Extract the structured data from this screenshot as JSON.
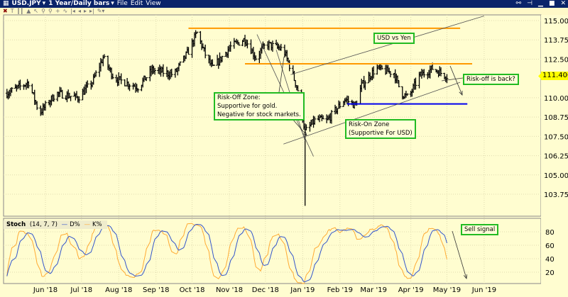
{
  "window": {
    "symbol": "USD.JPY",
    "period": "1 Year/Daily bars",
    "menu": [
      "File",
      "Edit",
      "View"
    ],
    "title_color": "#0a246a"
  },
  "toolbar": {
    "icons": [
      "close-icon",
      "text-icon",
      "bars-icon",
      "area-icon",
      "line-tool-icon",
      "zoom-in-icon",
      "zoom-out-icon",
      "crosshair-icon",
      "indicator-icon",
      "scroll-start-icon",
      "scroll-left-icon",
      "scroll-right-icon",
      "scroll-end-icon",
      "tool-icon"
    ]
  },
  "annotations": {
    "title": "USD vs Yen",
    "risk_off": [
      "Risk-Off Zone:",
      "Supportive for gold.",
      "Negative for stock markets."
    ],
    "risk_on": [
      "Risk-On Zone",
      "(Supportive For USD)"
    ],
    "risk_off_back": "Risk-off is back?",
    "sell_signal": "Sell signal",
    "border_color": "#22bb22"
  },
  "indicator": {
    "name": "Stoch",
    "params": "(14, 7, 7)",
    "d_label": "D%",
    "k_label": "K%",
    "d_color": "#3355cc",
    "k_color": "#ffaa33",
    "y_ticks": [
      "80",
      "60",
      "40",
      "20"
    ]
  },
  "chart_data": {
    "type": "ohlc",
    "last_price": "111.400",
    "y_ticks": [
      "115.000",
      "113.750",
      "112.500",
      "110.000",
      "108.750",
      "107.500",
      "106.250",
      "105.000",
      "103.750"
    ],
    "ylim": [
      102.9,
      115.6
    ],
    "x_ticks": [
      {
        "label": "Jun '18",
        "date": "2018-06-01"
      },
      {
        "label": "Jul '18",
        "date": "2018-07-01"
      },
      {
        "label": "Aug '18",
        "date": "2018-08-01"
      },
      {
        "label": "Sep '18",
        "date": "2018-09-01"
      },
      {
        "label": "Oct '18",
        "date": "2018-10-01"
      },
      {
        "label": "Nov '18",
        "date": "2018-11-01"
      },
      {
        "label": "Dec '18",
        "date": "2018-12-01"
      },
      {
        "label": "Jan '19",
        "date": "2019-01-01"
      },
      {
        "label": "Feb '19",
        "date": "2019-02-01"
      },
      {
        "label": "Mar '19",
        "date": "2019-03-01"
      },
      {
        "label": "Apr '19",
        "date": "2019-04-01"
      },
      {
        "label": "May '19",
        "date": "2019-05-01"
      },
      {
        "label": "Jun '19",
        "date": "2019-06-01"
      }
    ],
    "approx_closes": [
      [
        "2018-04-30",
        110.3
      ],
      [
        "2018-05-18",
        111.0
      ],
      [
        "2018-05-27",
        109.0
      ],
      [
        "2018-06-10",
        110.3
      ],
      [
        "2018-06-28",
        110.0
      ],
      [
        "2018-07-10",
        111.0
      ],
      [
        "2018-07-19",
        112.6
      ],
      [
        "2018-07-28",
        111.3
      ],
      [
        "2018-08-06",
        111.0
      ],
      [
        "2018-08-17",
        110.7
      ],
      [
        "2018-08-29",
        111.8
      ],
      [
        "2018-09-16",
        111.5
      ],
      [
        "2018-09-28",
        113.0
      ],
      [
        "2018-10-05",
        114.2
      ],
      [
        "2018-10-12",
        112.8
      ],
      [
        "2018-10-18",
        111.9
      ],
      [
        "2018-11-02",
        113.3
      ],
      [
        "2018-11-14",
        113.8
      ],
      [
        "2018-11-23",
        112.6
      ],
      [
        "2018-12-02",
        113.5
      ],
      [
        "2018-12-16",
        113.1
      ],
      [
        "2018-12-22",
        111.9
      ],
      [
        "2018-12-28",
        110.5
      ],
      [
        "2019-01-03",
        107.8
      ],
      [
        "2019-01-12",
        108.6
      ],
      [
        "2019-01-21",
        108.5
      ],
      [
        "2019-02-05",
        109.9
      ],
      [
        "2019-02-14",
        109.5
      ],
      [
        "2019-02-19",
        110.8
      ],
      [
        "2019-03-03",
        111.9
      ],
      [
        "2019-03-18",
        111.6
      ],
      [
        "2019-03-24",
        110.3
      ],
      [
        "2019-03-30",
        110.0
      ],
      [
        "2019-04-08",
        111.4
      ],
      [
        "2019-04-19",
        111.9
      ],
      [
        "2019-05-01",
        111.4
      ]
    ],
    "flash_crash": {
      "date": "2019-01-03",
      "low": 103.0
    },
    "lines": [
      {
        "kind": "resistance",
        "color": "#ff9900",
        "from": [
          "2018-09-28",
          114.5
        ],
        "to": [
          "2019-05-12",
          114.5
        ]
      },
      {
        "kind": "resistance",
        "color": "#ff9900",
        "from": [
          "2018-11-14",
          112.2
        ],
        "to": [
          "2019-05-22",
          112.2
        ]
      },
      {
        "kind": "support",
        "color": "#0000ee",
        "from": [
          "2019-02-07",
          109.6
        ],
        "to": [
          "2019-05-18",
          109.6
        ]
      },
      {
        "kind": "channel-upper",
        "color": "#555555",
        "from": [
          "2018-12-22",
          111.5
        ],
        "to": [
          "2019-06-01",
          115.3
        ]
      },
      {
        "kind": "channel-lower",
        "color": "#555555",
        "from": [
          "2018-12-16",
          107.0
        ],
        "to": [
          "2019-05-12",
          111.0
        ]
      },
      {
        "kind": "trend",
        "color": "#555555",
        "from": [
          "2018-11-24",
          114.1
        ],
        "to": [
          "2019-01-10",
          106.2
        ]
      },
      {
        "kind": "trend",
        "color": "#555555",
        "from": [
          "2018-12-10",
          113.1
        ],
        "to": [
          "2019-01-03",
          107.2
        ]
      }
    ]
  }
}
